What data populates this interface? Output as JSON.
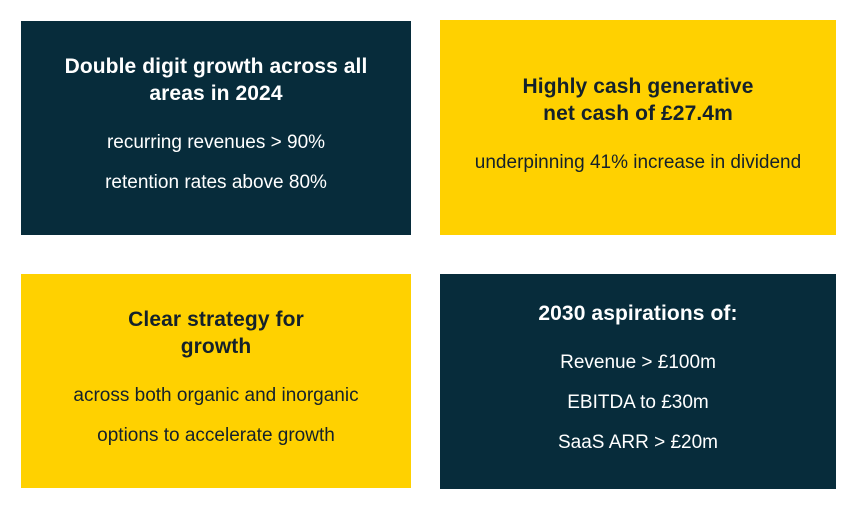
{
  "colors": {
    "navy": "#072c3b",
    "yellow": "#ffd100",
    "text_on_navy": "#ffffff",
    "text_on_yellow": "#14212b",
    "page_bg": "#ffffff"
  },
  "cards": [
    {
      "id": "growth-2024",
      "theme": "navy",
      "title": "Double digit growth across all\nareas in 2024",
      "lines": [
        "recurring revenues > 90%",
        "retention rates above 80%"
      ]
    },
    {
      "id": "net-cash",
      "theme": "yellow",
      "title": "Highly cash generative\nnet cash of £27.4m",
      "lines": [
        "underpinning 41% increase in dividend"
      ]
    },
    {
      "id": "clear-strategy",
      "theme": "yellow",
      "title": "Clear strategy for\ngrowth",
      "lines": [
        "across both organic and inorganic",
        "options to accelerate growth"
      ]
    },
    {
      "id": "aspirations-2030",
      "theme": "navy",
      "title": "2030 aspirations of:",
      "lines": [
        "Revenue > £100m",
        "EBITDA to £30m",
        "SaaS ARR > £20m"
      ]
    }
  ]
}
